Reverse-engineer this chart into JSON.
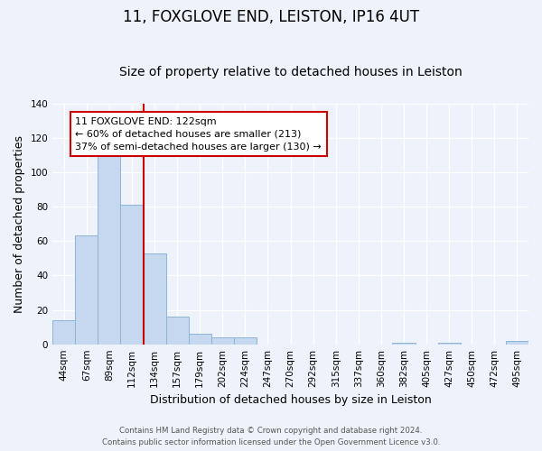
{
  "title": "11, FOXGLOVE END, LEISTON, IP16 4UT",
  "subtitle": "Size of property relative to detached houses in Leiston",
  "xlabel": "Distribution of detached houses by size in Leiston",
  "ylabel": "Number of detached properties",
  "bar_labels": [
    "44sqm",
    "67sqm",
    "89sqm",
    "112sqm",
    "134sqm",
    "157sqm",
    "179sqm",
    "202sqm",
    "224sqm",
    "247sqm",
    "270sqm",
    "292sqm",
    "315sqm",
    "337sqm",
    "360sqm",
    "382sqm",
    "405sqm",
    "427sqm",
    "450sqm",
    "472sqm",
    "495sqm"
  ],
  "bar_values": [
    14,
    63,
    111,
    81,
    53,
    16,
    6,
    4,
    4,
    0,
    0,
    0,
    0,
    0,
    0,
    1,
    0,
    1,
    0,
    0,
    2
  ],
  "bar_color": "#c5d8f0",
  "bar_edge_color": "#8ab4d8",
  "vline_color": "#cc0000",
  "ylim": [
    0,
    140
  ],
  "yticks": [
    0,
    20,
    40,
    60,
    80,
    100,
    120,
    140
  ],
  "annotation_title": "11 FOXGLOVE END: 122sqm",
  "annotation_line1": "← 60% of detached houses are smaller (213)",
  "annotation_line2": "37% of semi-detached houses are larger (130) →",
  "annotation_box_color": "#cc0000",
  "background_color": "#eef2fa",
  "footer_line1": "Contains HM Land Registry data © Crown copyright and database right 2024.",
  "footer_line2": "Contains public sector information licensed under the Open Government Licence v3.0.",
  "title_fontsize": 12,
  "subtitle_fontsize": 10,
  "axis_label_fontsize": 9,
  "tick_fontsize": 7.5,
  "ann_fontsize": 8
}
